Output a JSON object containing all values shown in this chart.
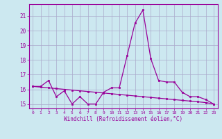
{
  "xlabel": "Windchill (Refroidissement éolien,°C)",
  "x": [
    0,
    1,
    2,
    3,
    4,
    5,
    6,
    7,
    8,
    9,
    10,
    11,
    12,
    13,
    14,
    15,
    16,
    17,
    18,
    19,
    20,
    21,
    22,
    23
  ],
  "y_line1": [
    16.2,
    16.2,
    16.6,
    15.5,
    15.9,
    15.0,
    15.5,
    15.0,
    15.0,
    15.8,
    16.1,
    16.1,
    18.3,
    20.5,
    21.4,
    18.1,
    16.6,
    16.5,
    16.5,
    15.8,
    15.5,
    15.5,
    15.3,
    15.0
  ],
  "y_line2": [
    16.2,
    16.15,
    16.1,
    16.05,
    16.0,
    15.95,
    15.9,
    15.85,
    15.8,
    15.75,
    15.7,
    15.65,
    15.6,
    15.55,
    15.5,
    15.45,
    15.4,
    15.35,
    15.3,
    15.25,
    15.2,
    15.15,
    15.1,
    15.0
  ],
  "line_color": "#990099",
  "bg_color": "#cce8f0",
  "grid_color": "#aaaacc",
  "ylim": [
    14.7,
    21.8
  ],
  "yticks": [
    15,
    16,
    17,
    18,
    19,
    20,
    21
  ],
  "xticks": [
    0,
    1,
    2,
    3,
    4,
    5,
    6,
    7,
    8,
    9,
    10,
    11,
    12,
    13,
    14,
    15,
    16,
    17,
    18,
    19,
    20,
    21,
    22,
    23
  ]
}
